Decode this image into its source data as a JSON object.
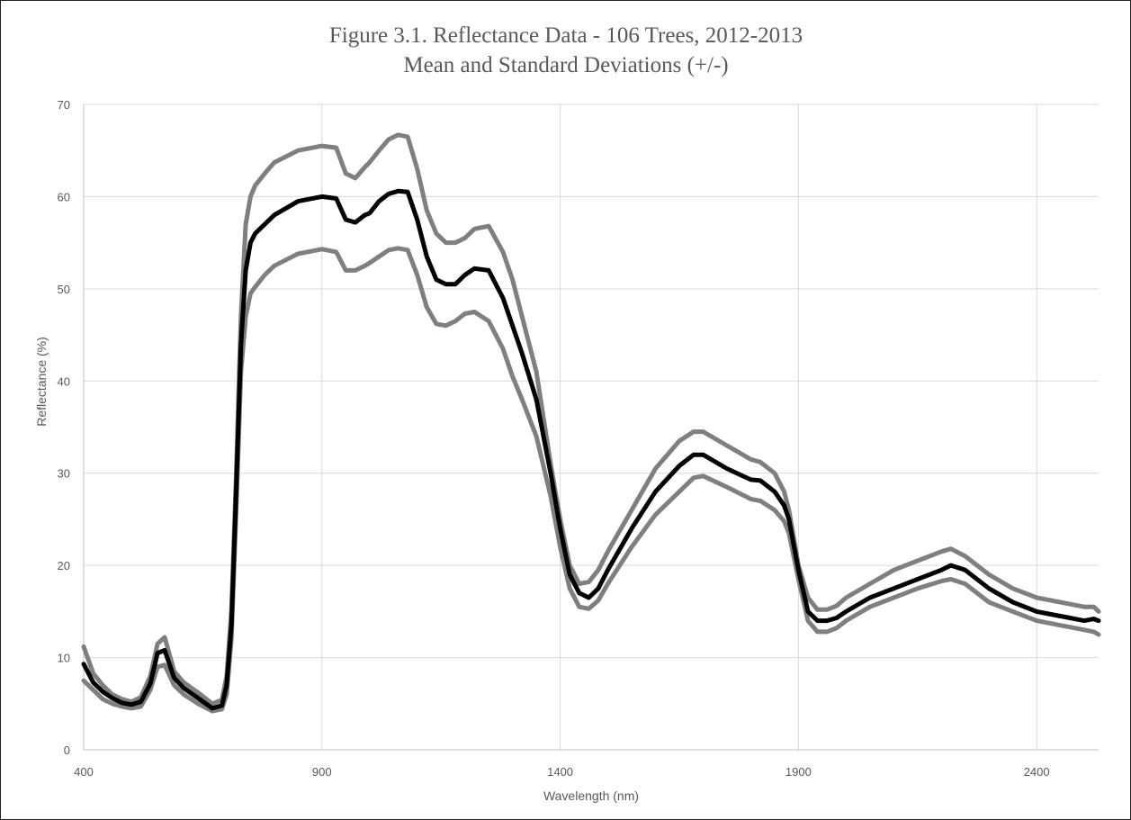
{
  "chart_data": {
    "type": "line",
    "title": "Figure 3.1. Reflectance Data - 106 Trees, 2012-2013",
    "subtitle": "Mean and Standard Deviations (+/-)",
    "xlabel": "Wavelength (nm)",
    "ylabel": "Reflectance (%)",
    "xlim": [
      400,
      2530
    ],
    "ylim": [
      0,
      70
    ],
    "x_ticks": [
      400,
      900,
      1400,
      1900,
      2400
    ],
    "y_ticks": [
      0,
      10,
      20,
      30,
      40,
      50,
      60,
      70
    ],
    "grid": true,
    "legend": "none",
    "colors": {
      "mean": "#000000",
      "sd": "#7f7f7f"
    },
    "series": [
      {
        "role": "upper",
        "x": [
          400,
          420,
          440,
          460,
          480,
          500,
          520,
          540,
          555,
          570,
          590,
          610,
          640,
          670,
          690,
          700,
          710,
          720,
          730,
          740,
          750,
          760,
          780,
          800,
          850,
          900,
          930,
          950,
          970,
          990,
          1000,
          1020,
          1040,
          1060,
          1080,
          1100,
          1120,
          1140,
          1160,
          1180,
          1200,
          1220,
          1250,
          1280,
          1300,
          1320,
          1350,
          1380,
          1400,
          1420,
          1440,
          1460,
          1480,
          1500,
          1550,
          1600,
          1650,
          1680,
          1700,
          1750,
          1800,
          1820,
          1850,
          1870,
          1880,
          1900,
          1920,
          1940,
          1960,
          1980,
          2000,
          2050,
          2100,
          2150,
          2200,
          2220,
          2250,
          2300,
          2350,
          2400,
          2450,
          2500,
          2520,
          2530
        ],
        "values": [
          11.2,
          8.3,
          7.0,
          6.0,
          5.5,
          5.2,
          5.7,
          8.0,
          11.5,
          12.2,
          8.5,
          7.3,
          6.2,
          5.0,
          5.4,
          8.0,
          15.0,
          30.0,
          47.0,
          57.0,
          60.0,
          61.2,
          62.5,
          63.7,
          65.0,
          65.5,
          65.3,
          62.5,
          62.0,
          63.2,
          63.7,
          65.0,
          66.2,
          66.7,
          66.5,
          63.0,
          58.5,
          56.0,
          55.0,
          55.0,
          55.5,
          56.5,
          56.8,
          54.0,
          51.0,
          47.0,
          41.0,
          31.0,
          25.0,
          20.0,
          18.0,
          18.2,
          19.5,
          21.5,
          26.0,
          30.5,
          33.5,
          34.5,
          34.5,
          33.0,
          31.5,
          31.2,
          30.0,
          28.0,
          26.0,
          20.0,
          16.5,
          15.2,
          15.2,
          15.6,
          16.5,
          18.0,
          19.5,
          20.5,
          21.5,
          21.8,
          21.0,
          19.0,
          17.5,
          16.5,
          16.0,
          15.5,
          15.5,
          15.0
        ]
      },
      {
        "role": "mean",
        "x": [
          400,
          420,
          440,
          460,
          480,
          500,
          520,
          540,
          555,
          570,
          590,
          610,
          640,
          670,
          690,
          700,
          710,
          720,
          730,
          740,
          750,
          760,
          780,
          800,
          850,
          900,
          930,
          950,
          970,
          990,
          1000,
          1020,
          1040,
          1060,
          1080,
          1100,
          1120,
          1140,
          1160,
          1180,
          1200,
          1220,
          1250,
          1280,
          1300,
          1320,
          1350,
          1380,
          1400,
          1420,
          1440,
          1460,
          1480,
          1500,
          1550,
          1600,
          1650,
          1680,
          1700,
          1750,
          1800,
          1820,
          1850,
          1870,
          1880,
          1900,
          1920,
          1940,
          1960,
          1980,
          2000,
          2050,
          2100,
          2150,
          2200,
          2220,
          2250,
          2300,
          2350,
          2400,
          2450,
          2500,
          2520,
          2530
        ],
        "values": [
          9.3,
          7.3,
          6.3,
          5.6,
          5.1,
          4.9,
          5.2,
          7.2,
          10.5,
          10.8,
          7.8,
          6.7,
          5.6,
          4.5,
          4.8,
          7.0,
          13.5,
          28.0,
          44.0,
          52.0,
          55.0,
          56.0,
          57.0,
          58.0,
          59.5,
          60.0,
          59.8,
          57.5,
          57.2,
          58.0,
          58.2,
          59.5,
          60.3,
          60.6,
          60.5,
          57.5,
          53.5,
          51.0,
          50.5,
          50.5,
          51.5,
          52.2,
          52.0,
          49.0,
          46.0,
          43.0,
          38.0,
          30.0,
          24.0,
          19.0,
          17.0,
          16.5,
          17.5,
          19.5,
          24.0,
          28.0,
          30.8,
          32.0,
          32.0,
          30.5,
          29.3,
          29.2,
          28.0,
          26.5,
          25.0,
          19.5,
          15.0,
          14.0,
          14.0,
          14.3,
          15.0,
          16.5,
          17.5,
          18.5,
          19.5,
          20.0,
          19.5,
          17.5,
          16.0,
          15.0,
          14.5,
          14.0,
          14.2,
          14.0
        ]
      },
      {
        "role": "lower",
        "x": [
          400,
          420,
          440,
          460,
          480,
          500,
          520,
          540,
          555,
          570,
          590,
          610,
          640,
          670,
          690,
          700,
          710,
          720,
          730,
          740,
          750,
          760,
          780,
          800,
          850,
          900,
          930,
          950,
          970,
          990,
          1000,
          1020,
          1040,
          1060,
          1080,
          1100,
          1120,
          1140,
          1160,
          1180,
          1200,
          1220,
          1250,
          1280,
          1300,
          1320,
          1350,
          1380,
          1400,
          1420,
          1440,
          1460,
          1480,
          1500,
          1550,
          1600,
          1650,
          1680,
          1700,
          1750,
          1800,
          1820,
          1850,
          1870,
          1880,
          1900,
          1920,
          1940,
          1960,
          1980,
          2000,
          2050,
          2100,
          2150,
          2200,
          2220,
          2250,
          2300,
          2350,
          2400,
          2450,
          2500,
          2520,
          2530
        ],
        "values": [
          7.5,
          6.5,
          5.5,
          5.0,
          4.7,
          4.5,
          4.7,
          6.5,
          9.0,
          9.2,
          7.0,
          6.0,
          5.0,
          4.2,
          4.4,
          6.0,
          12.0,
          26.0,
          41.0,
          47.0,
          49.5,
          50.2,
          51.5,
          52.5,
          53.8,
          54.3,
          54.0,
          52.0,
          52.0,
          52.5,
          52.8,
          53.5,
          54.2,
          54.4,
          54.2,
          51.5,
          48.0,
          46.2,
          46.0,
          46.5,
          47.3,
          47.5,
          46.5,
          43.5,
          40.5,
          38.0,
          34.0,
          27.5,
          22.0,
          17.5,
          15.5,
          15.3,
          16.2,
          18.0,
          22.0,
          25.5,
          28.0,
          29.5,
          29.7,
          28.5,
          27.2,
          27.0,
          26.0,
          24.8,
          23.5,
          18.5,
          14.0,
          12.8,
          12.8,
          13.2,
          14.0,
          15.5,
          16.5,
          17.5,
          18.3,
          18.5,
          18.0,
          16.0,
          15.0,
          14.0,
          13.5,
          13.0,
          12.8,
          12.5
        ]
      }
    ]
  }
}
